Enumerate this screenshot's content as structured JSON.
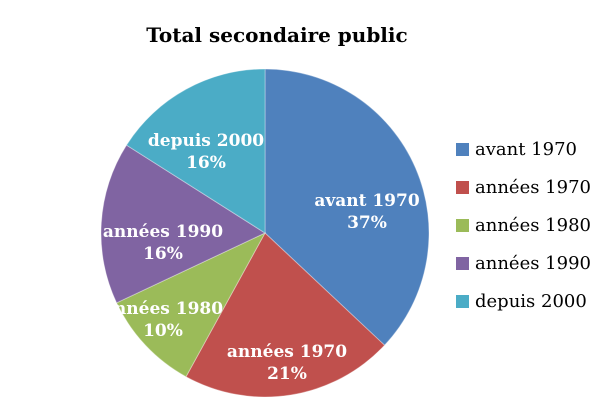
{
  "chart_data": {
    "type": "pie",
    "title": "Total secondaire public",
    "categories": [
      "avant 1970",
      "années 1970",
      "années 1980",
      "années 1990",
      "depuis 2000"
    ],
    "values": [
      37,
      21,
      10,
      16,
      16
    ],
    "value_suffix": "%",
    "colors": [
      "#4F81BD",
      "#C0504D",
      "#9BBB59",
      "#8064A2",
      "#4BACC6"
    ],
    "start_angle_deg": 0,
    "direction": "clockwise",
    "legend_position": "right",
    "slice_label_format": "{category} {value}%",
    "label_text_color": "#ffffff",
    "title_color": "#000000",
    "legend_text_color": "#000000",
    "background_color": "#ffffff"
  }
}
